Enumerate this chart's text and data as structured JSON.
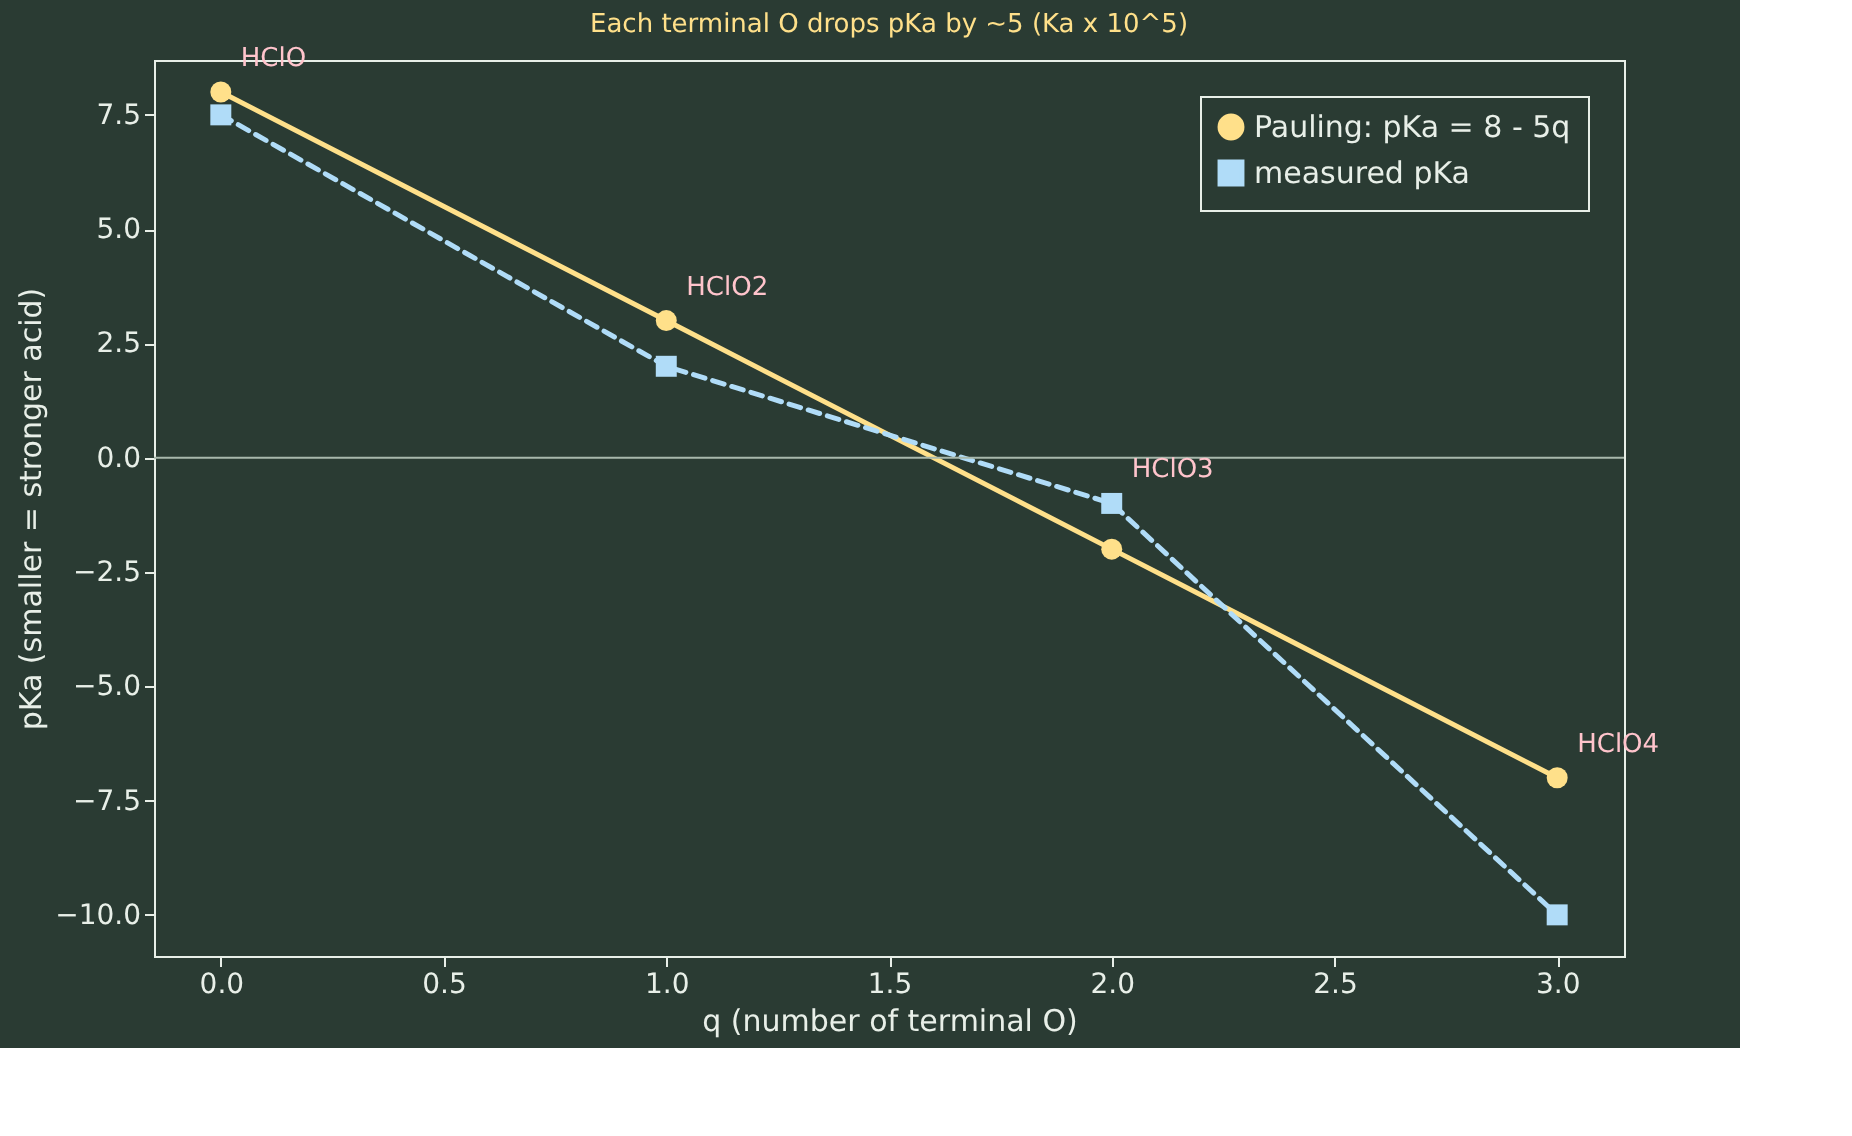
{
  "chart_data": {
    "type": "line",
    "title": "Each terminal O drops pKa by ~5 (Ka x 10^5)",
    "xlabel": "q  (number of terminal O)",
    "ylabel": "pKa   (smaller = stronger acid)",
    "x": [
      0,
      1,
      2,
      3
    ],
    "series": [
      {
        "name": "Pauling: pKa = 8 - 5q",
        "color": "#ffe08a",
        "values": [
          8,
          3,
          -2,
          -7
        ],
        "marker": "circle",
        "line_style": "solid"
      },
      {
        "name": "measured pKa",
        "color": "#b0dcf8",
        "values": [
          7.5,
          2,
          -1,
          -10
        ],
        "marker": "square",
        "line_style": "dashed"
      }
    ],
    "xlim": [
      -0.15,
      3.15
    ],
    "xticks": [
      {
        "value": 0,
        "label": "0.0"
      },
      {
        "value": 0.5,
        "label": "0.5"
      },
      {
        "value": 1,
        "label": "1.0"
      },
      {
        "value": 1.5,
        "label": "1.5"
      },
      {
        "value": 2,
        "label": "2.0"
      },
      {
        "value": 2.5,
        "label": "2.5"
      },
      {
        "value": 3,
        "label": "3.0"
      }
    ],
    "ylim": [
      -10.9,
      8.7
    ],
    "yticks": [
      {
        "value": -10,
        "label": "−10.0"
      },
      {
        "value": -7.5,
        "label": "−7.5"
      },
      {
        "value": -5,
        "label": "−5.0"
      },
      {
        "value": -2.5,
        "label": "−2.5"
      },
      {
        "value": 0,
        "label": "0.0"
      },
      {
        "value": 2.5,
        "label": "2.5"
      },
      {
        "value": 5,
        "label": "5.0"
      },
      {
        "value": 7.5,
        "label": "7.5"
      }
    ],
    "ref_lines": [
      {
        "axis": "y",
        "value": 0,
        "color": "#a8b8ac"
      }
    ],
    "annotations": [
      {
        "text": "HClO",
        "x": 0,
        "y": 8
      },
      {
        "text": "HClO2",
        "x": 1,
        "y": 3
      },
      {
        "text": "HClO3",
        "x": 2,
        "y": -1
      },
      {
        "text": "HClO4",
        "x": 3,
        "y": -7
      }
    ],
    "legend": "top right",
    "grid": false
  }
}
